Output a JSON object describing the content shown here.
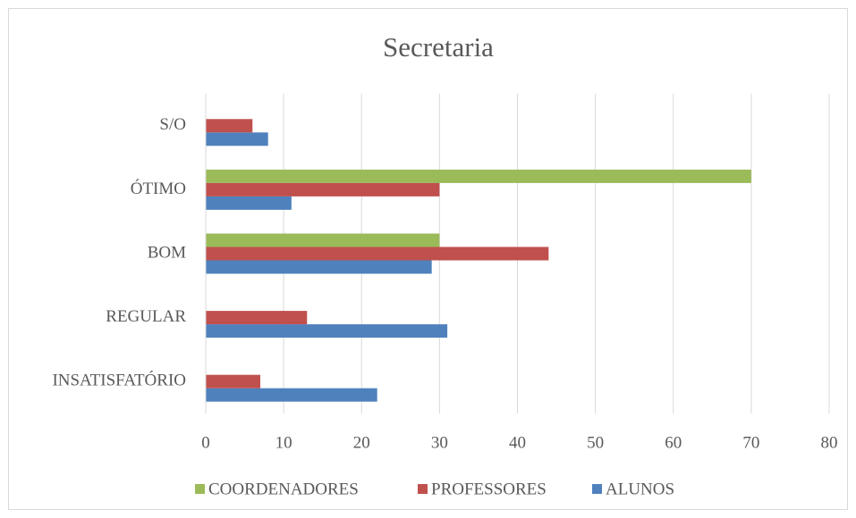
{
  "chart_data": {
    "type": "bar",
    "orientation": "horizontal",
    "title": "Secretaria",
    "categories": [
      "INSATISFATÓRIO",
      "REGULAR",
      "BOM",
      "ÓTIMO",
      "S/O"
    ],
    "series": [
      {
        "name": "ALUNOS",
        "color": "#4f81bd",
        "values": [
          22,
          31,
          29,
          11,
          8
        ]
      },
      {
        "name": "PROFESSORES",
        "color": "#c0504d",
        "values": [
          7,
          13,
          44,
          30,
          6
        ]
      },
      {
        "name": "COORDENADORES",
        "color": "#9bbb59",
        "values": [
          0,
          0,
          30,
          70,
          0
        ]
      }
    ],
    "xlim": [
      0,
      80
    ],
    "xticks": [
      0,
      10,
      20,
      30,
      40,
      50,
      60,
      70,
      80
    ],
    "grid": true,
    "legend": "bottom"
  }
}
